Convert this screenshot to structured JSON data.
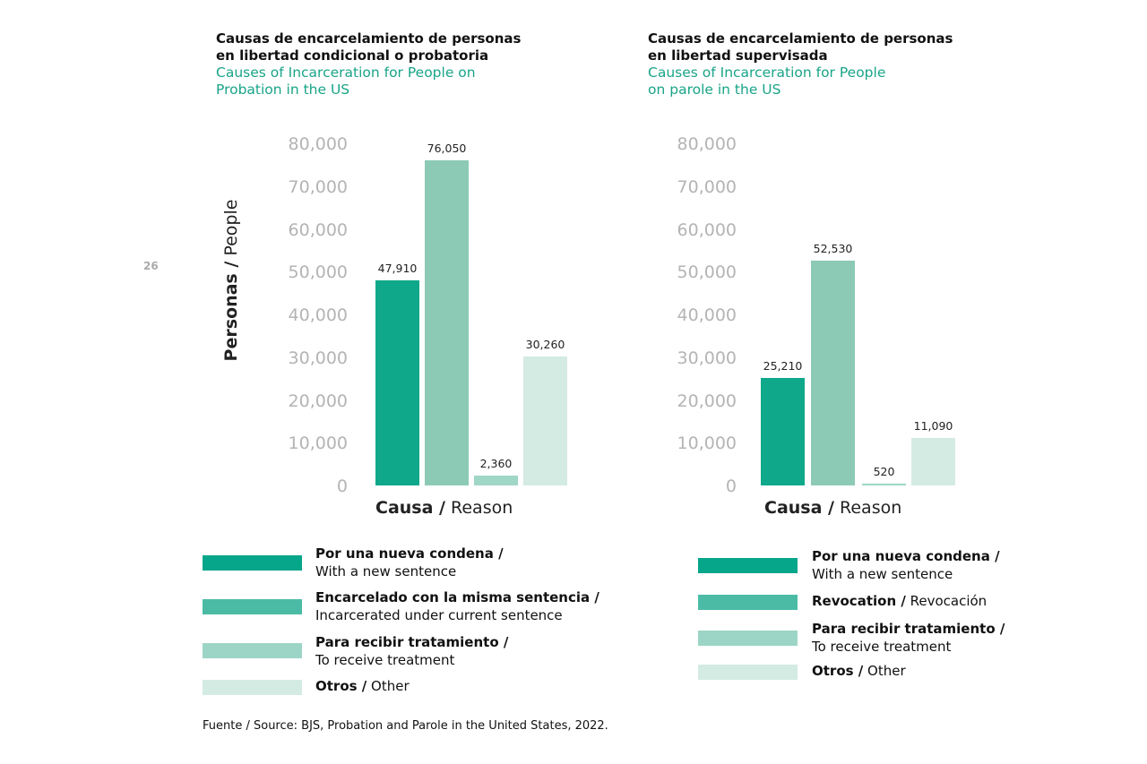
{
  "page_number": "26",
  "source": "Fuente / Source: BJS, Probation and Parole in the United States, 2022.",
  "colors": {
    "new_sentence": "#0fa88a",
    "second": "#8ccab5",
    "treatment": "#9fd6c6",
    "other": "#d4ebe3",
    "legend": [
      "#06a68a",
      "#4bbba6",
      "#9cd5c6",
      "#d3ebe3"
    ]
  },
  "chart_data": [
    {
      "type": "bar",
      "title_lines": [
        "Causas de encarcelamiento de personas",
        "en libertad condicional o probatoria"
      ],
      "subtitle_lines": [
        "Causes of Incarceration for People on",
        "Probation in the US"
      ],
      "ylabel_bold": "Personas /",
      "ylabel": " People",
      "xlabel_bold": "Causa /",
      "xlabel": " Reason",
      "ylim": [
        0,
        80000
      ],
      "yticks": [
        "0",
        "10,000",
        "20,000",
        "30,000",
        "40,000",
        "50,000",
        "60,000",
        "70,000",
        "80,000"
      ],
      "values": [
        47910,
        76050,
        2360,
        30260
      ],
      "labels": [
        "47,910",
        "76,050",
        "2,360",
        "30,260"
      ],
      "legend": [
        {
          "bold": "Por una nueva condena /",
          "text": "With a new sentence"
        },
        {
          "bold": "Encarcelado con la misma sentencia /",
          "text": "Incarcerated under current sentence"
        },
        {
          "bold": "Para recibir tratamiento /",
          "text": "To receive treatment"
        },
        {
          "bold": "Otros /",
          "text": " Other"
        }
      ]
    },
    {
      "type": "bar",
      "title_lines": [
        "Causas de encarcelamiento de personas",
        "en libertad supervisada"
      ],
      "subtitle_lines": [
        "Causes of Incarceration for People",
        "on parole in the US"
      ],
      "xlabel_bold": "Causa /",
      "xlabel": " Reason",
      "ylim": [
        0,
        80000
      ],
      "yticks": [
        "0",
        "10,000",
        "20,000",
        "30,000",
        "40,000",
        "50,000",
        "60,000",
        "70,000",
        "80,000"
      ],
      "values": [
        25210,
        52530,
        520,
        11090
      ],
      "labels": [
        "25,210",
        "52,530",
        "520",
        "11,090"
      ],
      "legend": [
        {
          "bold": "Por una nueva condena /",
          "text": "With a new sentence"
        },
        {
          "bold": "Revocation /",
          "text": " Revocación"
        },
        {
          "bold": "Para recibir tratamiento /",
          "text": "To receive treatment"
        },
        {
          "bold": "Otros /",
          "text": " Other"
        }
      ]
    }
  ]
}
